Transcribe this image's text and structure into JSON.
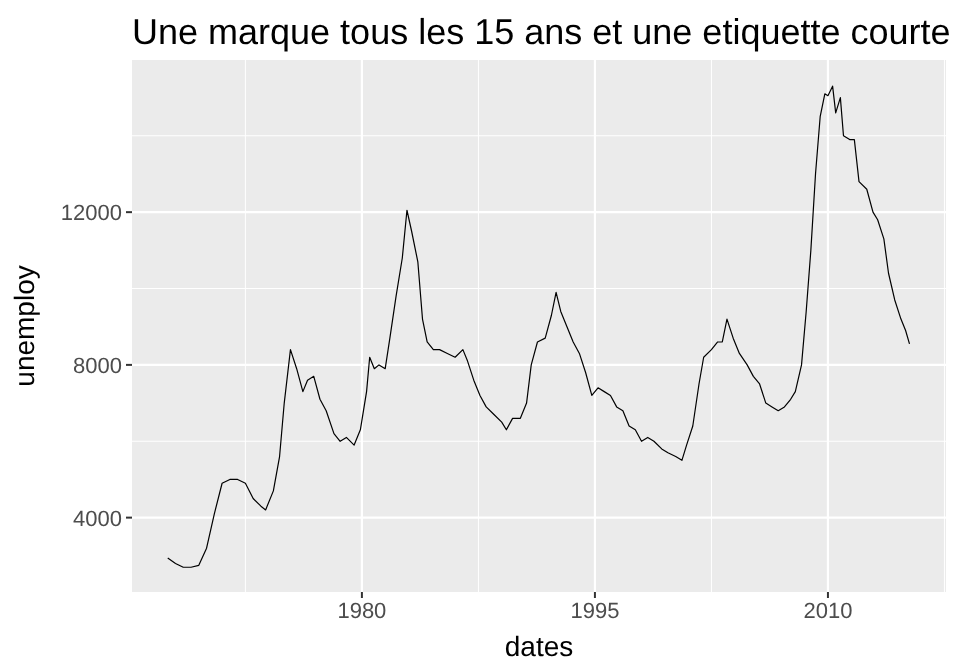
{
  "chart_data": {
    "type": "line",
    "title": "Une marque tous les 15 ans et une etiquette courte",
    "xlabel": "dates",
    "ylabel": "unemploy",
    "x": [
      1967.5,
      1968.0,
      1968.5,
      1969.0,
      1969.5,
      1970.0,
      1970.5,
      1971.0,
      1971.5,
      1972.0,
      1972.5,
      1973.0,
      1973.5,
      1973.8,
      1974.3,
      1974.7,
      1975.0,
      1975.4,
      1975.8,
      1976.2,
      1976.5,
      1976.9,
      1977.3,
      1977.7,
      1978.2,
      1978.6,
      1979.0,
      1979.5,
      1979.9,
      1980.3,
      1980.5,
      1980.8,
      1981.1,
      1981.5,
      1981.8,
      1982.2,
      1982.6,
      1982.9,
      1983.2,
      1983.6,
      1983.9,
      1984.2,
      1984.6,
      1985.0,
      1985.5,
      1986.0,
      1986.5,
      1986.8,
      1987.2,
      1987.6,
      1988.0,
      1988.5,
      1989.0,
      1989.3,
      1989.7,
      1990.2,
      1990.6,
      1990.9,
      1991.3,
      1991.8,
      1992.2,
      1992.5,
      1992.8,
      1993.2,
      1993.6,
      1994.0,
      1994.4,
      1994.8,
      1995.2,
      1995.6,
      1996.0,
      1996.4,
      1996.8,
      1997.2,
      1997.6,
      1998.0,
      1998.4,
      1998.8,
      1999.3,
      1999.7,
      2000.2,
      2000.6,
      2000.9,
      2001.3,
      2001.7,
      2002.0,
      2002.5,
      2002.9,
      2003.2,
      2003.5,
      2003.9,
      2004.3,
      2004.8,
      2005.2,
      2005.6,
      2006.0,
      2006.4,
      2006.8,
      2007.2,
      2007.6,
      2007.9,
      2008.3,
      2008.6,
      2008.9,
      2009.2,
      2009.5,
      2009.8,
      2010.0,
      2010.3,
      2010.5,
      2010.8,
      2011.0,
      2011.4,
      2011.7,
      2012.0,
      2012.5,
      2012.9,
      2013.2,
      2013.6,
      2013.9,
      2014.3,
      2014.7,
      2015.0,
      2015.25
    ],
    "series": [
      {
        "color": "#000000",
        "values": [
          2944,
          2800,
          2700,
          2700,
          2750,
          3200,
          4100,
          4900,
          5000,
          5000,
          4900,
          4500,
          4300,
          4200,
          4700,
          5600,
          7000,
          8400,
          7900,
          7300,
          7600,
          7700,
          7100,
          6800,
          6200,
          6000,
          6100,
          5900,
          6300,
          7300,
          8200,
          7900,
          8000,
          7900,
          8700,
          9800,
          10800,
          12050,
          11500,
          10700,
          9200,
          8600,
          8400,
          8400,
          8300,
          8200,
          8400,
          8100,
          7600,
          7200,
          6900,
          6700,
          6500,
          6300,
          6600,
          6600,
          7000,
          8000,
          8600,
          8700,
          9300,
          9900,
          9400,
          9000,
          8600,
          8300,
          7800,
          7200,
          7400,
          7300,
          7200,
          6900,
          6800,
          6400,
          6300,
          6000,
          6100,
          6000,
          5800,
          5700,
          5600,
          5500,
          5900,
          6400,
          7500,
          8200,
          8400,
          8600,
          8600,
          9200,
          8700,
          8300,
          8000,
          7700,
          7500,
          7000,
          6900,
          6800,
          6900,
          7100,
          7300,
          8000,
          9400,
          11000,
          13000,
          14500,
          15100,
          15050,
          15300,
          14600,
          15000,
          14000,
          13900,
          13900,
          12800,
          12600,
          12000,
          11800,
          11300,
          10400,
          9700,
          9200,
          8900,
          8549
        ]
      }
    ],
    "xlim": [
      1965.2,
      2017.6
    ],
    "xticks": [
      1980,
      1995,
      2010
    ],
    "ylim": [
      2052,
      15985
    ],
    "yticks": [
      4000,
      8000,
      12000
    ],
    "grid": true
  }
}
